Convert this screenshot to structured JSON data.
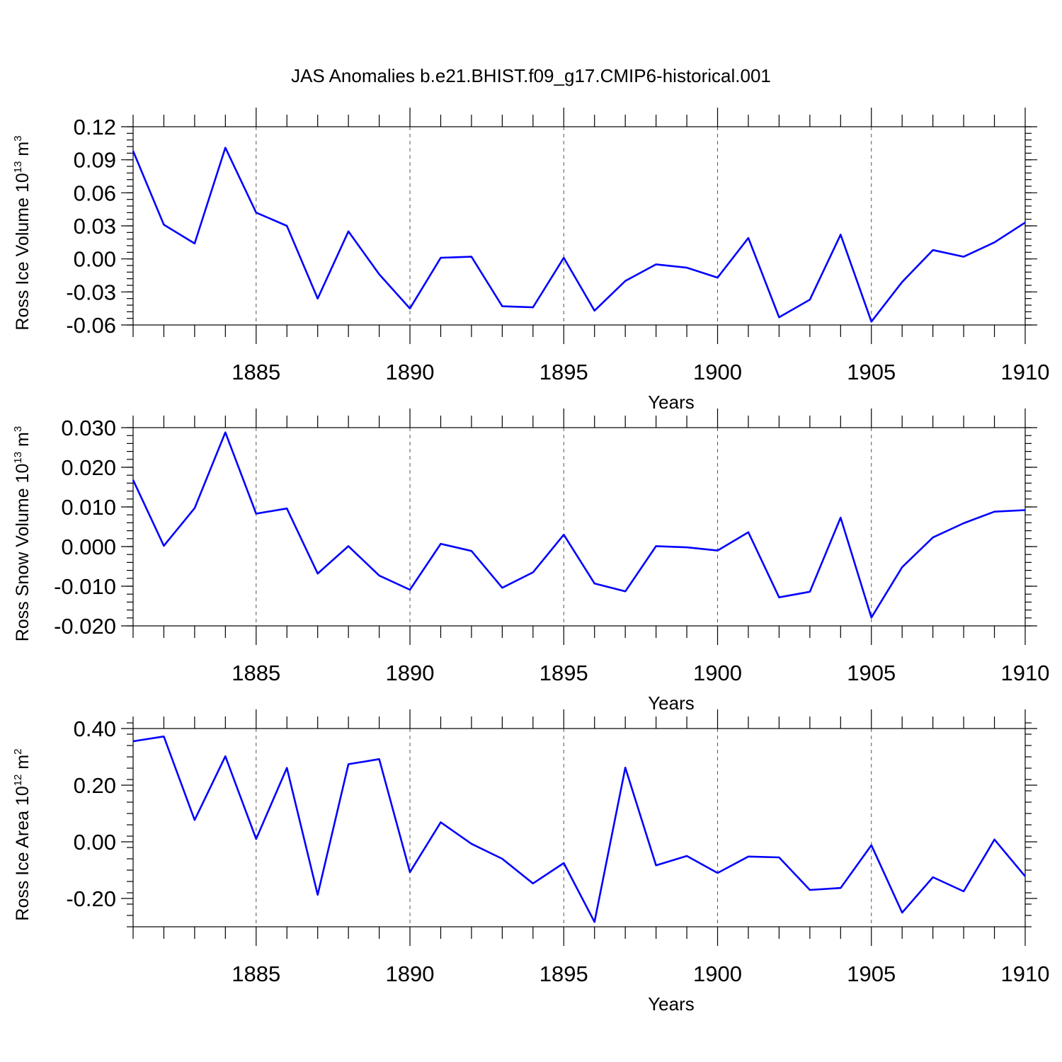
{
  "figure": {
    "title": "JAS Anomalies b.e21.BHIST.f09_g17.CMIP6-historical.001",
    "line_color": "#0000ff"
  },
  "chart_data": [
    {
      "type": "line",
      "ylabel_main": "Ross Ice Volume 10",
      "ylabel_exp": "13",
      "ylabel_unit": " m",
      "ylabel_unit_exp": "3",
      "xlabel": "Years",
      "xlim": [
        1881,
        1910
      ],
      "ylim": [
        -0.06,
        0.12
      ],
      "yticks": [
        0.12,
        0.09,
        0.06,
        0.03,
        0.0,
        -0.03,
        -0.06
      ],
      "ytick_labels": [
        "0.12",
        "0.09",
        "0.06",
        "0.03",
        "0.00",
        "-0.03",
        "-0.06"
      ],
      "yminor_step": 0.006,
      "xticks": [
        1885,
        1890,
        1895,
        1900,
        1905,
        1910
      ],
      "xtick_labels": [
        "1885",
        "1890",
        "1895",
        "1900",
        "1905",
        "1910"
      ],
      "grid_x": [
        1885,
        1890,
        1895,
        1900,
        1905
      ],
      "x": [
        1881,
        1882,
        1883,
        1884,
        1885,
        1886,
        1887,
        1888,
        1889,
        1890,
        1891,
        1892,
        1893,
        1894,
        1895,
        1896,
        1897,
        1898,
        1899,
        1900,
        1901,
        1902,
        1903,
        1904,
        1905,
        1906,
        1907,
        1908,
        1909,
        1910
      ],
      "values": [
        0.098,
        0.031,
        0.014,
        0.101,
        0.042,
        0.03,
        -0.036,
        0.025,
        -0.014,
        -0.045,
        0.001,
        0.002,
        -0.043,
        -0.044,
        0.001,
        -0.047,
        -0.02,
        -0.005,
        -0.008,
        -0.017,
        0.019,
        -0.053,
        -0.037,
        0.022,
        -0.057,
        -0.021,
        0.008,
        0.002,
        0.015,
        0.033
      ]
    },
    {
      "type": "line",
      "ylabel_main": "Ross Snow Volume 10",
      "ylabel_exp": "13",
      "ylabel_unit": " m",
      "ylabel_unit_exp": "3",
      "xlabel": "Years",
      "xlim": [
        1881,
        1910
      ],
      "ylim": [
        -0.02,
        0.03
      ],
      "yticks": [
        0.03,
        0.02,
        0.01,
        0.0,
        -0.01,
        -0.02
      ],
      "ytick_labels": [
        "0.030",
        "0.020",
        "0.010",
        "0.000",
        "-0.010",
        "-0.020"
      ],
      "yminor_step": 0.002,
      "xticks": [
        1885,
        1890,
        1895,
        1900,
        1905,
        1910
      ],
      "xtick_labels": [
        "1885",
        "1890",
        "1895",
        "1900",
        "1905",
        "1910"
      ],
      "grid_x": [
        1885,
        1890,
        1895,
        1900,
        1905
      ],
      "x": [
        1881,
        1882,
        1883,
        1884,
        1885,
        1886,
        1887,
        1888,
        1889,
        1890,
        1891,
        1892,
        1893,
        1894,
        1895,
        1896,
        1897,
        1898,
        1899,
        1900,
        1901,
        1902,
        1903,
        1904,
        1905,
        1906,
        1907,
        1908,
        1909,
        1910
      ],
      "values": [
        0.0168,
        0.0002,
        0.0097,
        0.0288,
        0.0083,
        0.0096,
        -0.0068,
        0.0001,
        -0.0073,
        -0.0109,
        0.0007,
        -0.0011,
        -0.0104,
        -0.0065,
        0.003,
        -0.0093,
        -0.0113,
        0.0001,
        -0.0002,
        -0.001,
        0.0036,
        -0.0128,
        -0.0114,
        0.0073,
        -0.0179,
        -0.0052,
        0.0023,
        0.0059,
        0.0088,
        0.0092
      ]
    },
    {
      "type": "line",
      "ylabel_main": "Ross Ice Area 10",
      "ylabel_exp": "12",
      "ylabel_unit": " m",
      "ylabel_unit_exp": "2",
      "xlabel": "Years",
      "xlim": [
        1881,
        1910
      ],
      "ylim": [
        -0.3,
        0.4
      ],
      "yticks": [
        0.4,
        0.2,
        0.0,
        -0.2
      ],
      "ytick_labels": [
        "0.40",
        "0.20",
        "0.00",
        "-0.20"
      ],
      "yminor_step": 0.04,
      "xticks": [
        1885,
        1890,
        1895,
        1900,
        1905,
        1910
      ],
      "xtick_labels": [
        "1885",
        "1890",
        "1895",
        "1900",
        "1905",
        "1910"
      ],
      "grid_x": [
        1885,
        1890,
        1895,
        1900,
        1905
      ],
      "x": [
        1881,
        1882,
        1883,
        1884,
        1885,
        1886,
        1887,
        1888,
        1889,
        1890,
        1891,
        1892,
        1893,
        1894,
        1895,
        1896,
        1897,
        1898,
        1899,
        1900,
        1901,
        1902,
        1903,
        1904,
        1905,
        1906,
        1907,
        1908,
        1909,
        1910
      ],
      "values": [
        0.355,
        0.372,
        0.077,
        0.302,
        0.01,
        0.261,
        -0.187,
        0.274,
        0.292,
        -0.107,
        0.069,
        -0.007,
        -0.06,
        -0.147,
        -0.075,
        -0.283,
        0.262,
        -0.083,
        -0.05,
        -0.11,
        -0.052,
        -0.055,
        -0.17,
        -0.163,
        -0.012,
        -0.25,
        -0.125,
        -0.175,
        0.008,
        -0.122
      ]
    }
  ]
}
